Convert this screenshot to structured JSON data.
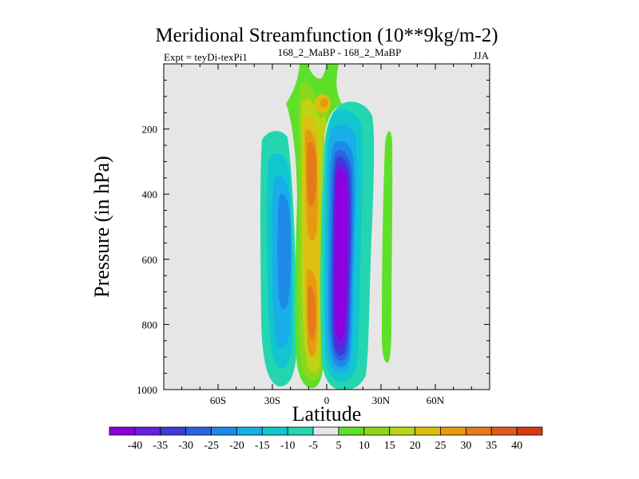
{
  "chart_data": {
    "type": "contour",
    "title": "Meridional Streamfunction (10**9kg/m-2)",
    "subtitle_left": "Expt = teyDi-texPi1",
    "subtitle_center": "168_2_MaBP - 168_2_MaBP",
    "subtitle_right": "JJA",
    "xlabel": "Latitude",
    "ylabel": "Pressure (in hPa)",
    "xlim": [
      -90,
      90
    ],
    "ylim": [
      1000,
      0
    ],
    "x_ticks": [
      {
        "value": -60,
        "label": "60S"
      },
      {
        "value": -30,
        "label": "30S"
      },
      {
        "value": 0,
        "label": "0"
      },
      {
        "value": 30,
        "label": "30N"
      },
      {
        "value": 60,
        "label": "60N"
      }
    ],
    "y_ticks": [
      {
        "value": 200,
        "label": "200"
      },
      {
        "value": 400,
        "label": "400"
      },
      {
        "value": 600,
        "label": "600"
      },
      {
        "value": 800,
        "label": "800"
      },
      {
        "value": 1000,
        "label": "1000"
      }
    ],
    "background_color": "#e6e6e6",
    "colorbar": {
      "labels": [
        "-40",
        "-35",
        "-30",
        "-25",
        "-20",
        "-15",
        "-10",
        "-5",
        "5",
        "10",
        "15",
        "20",
        "25",
        "30",
        "35",
        "40"
      ],
      "colors": [
        "#8c00e0",
        "#6a1ee0",
        "#3a3cdc",
        "#2a63e0",
        "#1e8ae8",
        "#18aee8",
        "#12c6d0",
        "#24d6b0",
        "#e6e6e6",
        "#5ee02a",
        "#8ed61e",
        "#bcd414",
        "#dcc010",
        "#e69a12",
        "#e67a18",
        "#e05a1c",
        "#d83812"
      ]
    },
    "regions": [
      {
        "name": "southern-hemisphere-negative-cell",
        "value_range": [
          -25,
          -5
        ],
        "lat_range": [
          -36,
          -16
        ],
        "pressure_range": [
          190,
          990
        ]
      },
      {
        "name": "equatorial-positive-cell",
        "value_range": [
          5,
          35
        ],
        "lat_range": [
          -17,
          0
        ],
        "pressure_range": [
          0,
          985
        ]
      },
      {
        "name": "northern-tropical-negative-cell",
        "value_range": [
          -40,
          -5
        ],
        "lat_range": [
          -3,
          26
        ],
        "pressure_range": [
          60,
          990
        ]
      },
      {
        "name": "northern-subtropical-positive-band",
        "value_range": [
          5,
          10
        ],
        "lat_range": [
          31,
          36
        ],
        "pressure_range": [
          235,
          905
        ]
      }
    ]
  }
}
